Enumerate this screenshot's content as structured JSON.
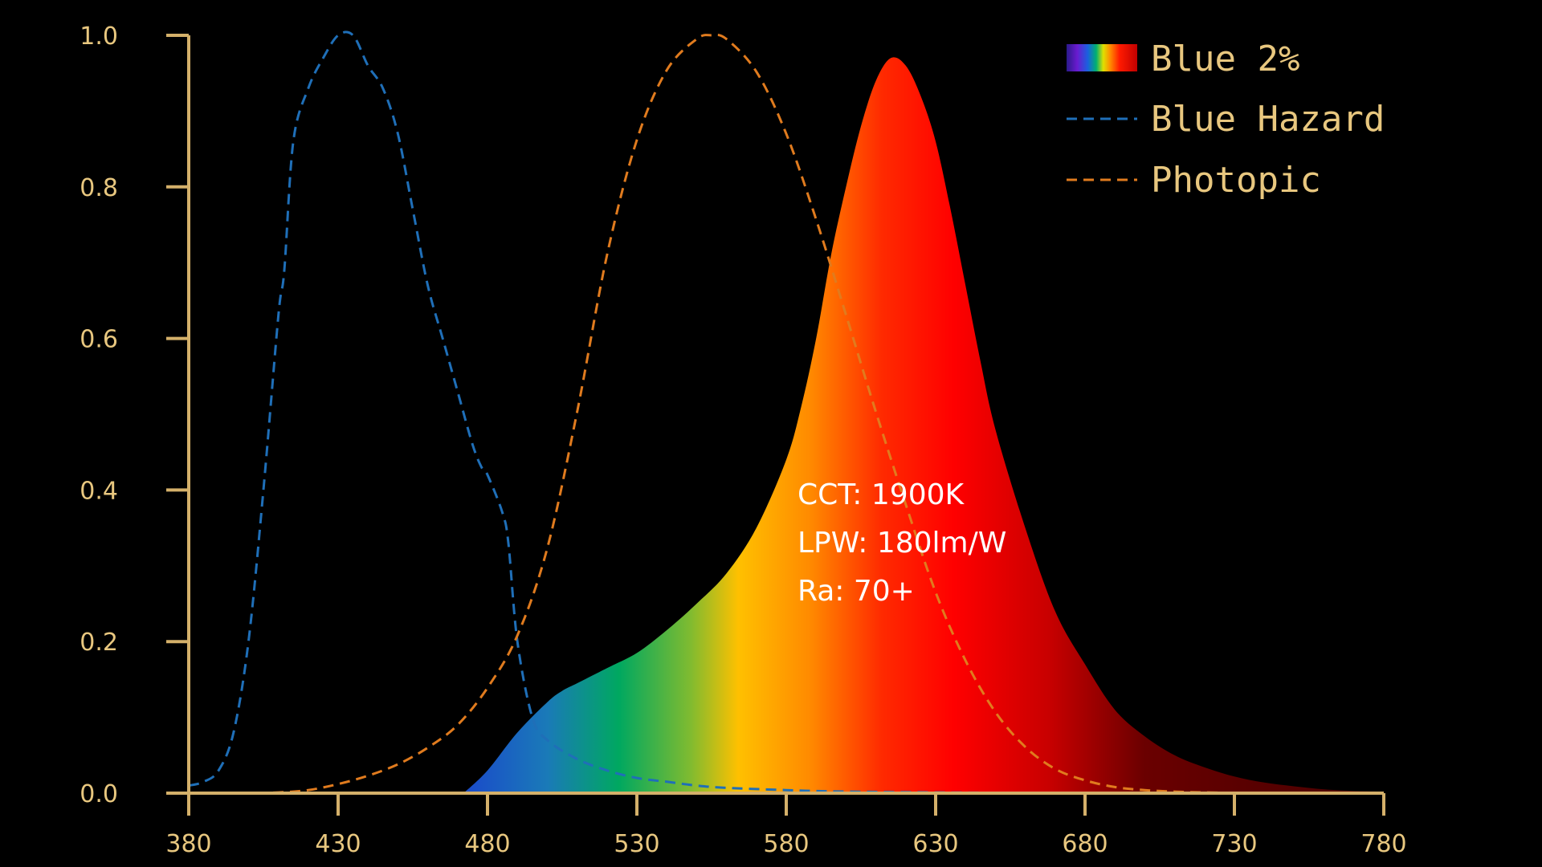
{
  "chart_data": {
    "type": "area",
    "xlim": [
      380,
      780
    ],
    "ylim": [
      0,
      1.0
    ],
    "x_ticks": [
      380,
      430,
      480,
      530,
      580,
      630,
      680,
      730,
      780
    ],
    "y_ticks": [
      "0.0",
      "0.2",
      "0.4",
      "0.6",
      "0.8",
      "1.0"
    ],
    "axis_color": "#d4b06a",
    "grid": false,
    "legend_position": "top-right",
    "series": [
      {
        "name": "Blue 2%",
        "style": "spectrum-fill",
        "x": [
          472,
          480,
          490,
          500,
          505,
          510,
          520,
          530,
          540,
          550,
          560,
          570,
          580,
          585,
          590,
          595,
          600,
          605,
          610,
          615,
          620,
          625,
          630,
          635,
          640,
          645,
          650,
          660,
          670,
          680,
          690,
          700,
          710,
          720,
          730,
          740,
          750,
          760,
          770,
          780
        ],
        "y": [
          0.0,
          0.03,
          0.08,
          0.12,
          0.135,
          0.145,
          0.165,
          0.185,
          0.215,
          0.25,
          0.29,
          0.35,
          0.44,
          0.51,
          0.6,
          0.71,
          0.8,
          0.88,
          0.94,
          0.97,
          0.96,
          0.92,
          0.86,
          0.77,
          0.67,
          0.57,
          0.48,
          0.35,
          0.24,
          0.17,
          0.11,
          0.075,
          0.05,
          0.034,
          0.022,
          0.014,
          0.009,
          0.005,
          0.003,
          0.002
        ]
      },
      {
        "name": "Blue Hazard",
        "style": "dashed",
        "color": "#1f6fb8",
        "x": [
          380,
          385,
          390,
          395,
          400,
          405,
          410,
          412,
          415,
          420,
          425,
          430,
          435,
          440,
          445,
          450,
          455,
          460,
          465,
          470,
          475,
          478,
          480,
          485,
          487,
          490,
          495,
          500,
          510,
          520,
          530,
          540,
          550,
          560,
          580,
          600,
          630,
          680,
          730,
          780
        ],
        "y": [
          0.01,
          0.015,
          0.03,
          0.08,
          0.2,
          0.4,
          0.63,
          0.69,
          0.86,
          0.93,
          0.97,
          1.0,
          1.0,
          0.96,
          0.93,
          0.87,
          0.77,
          0.67,
          0.6,
          0.53,
          0.46,
          0.43,
          0.42,
          0.37,
          0.33,
          0.2,
          0.1,
          0.07,
          0.045,
          0.03,
          0.02,
          0.015,
          0.01,
          0.007,
          0.004,
          0.002,
          0.001,
          0.0,
          0.0,
          0.0
        ]
      },
      {
        "name": "Photopic",
        "style": "dashed",
        "color": "#e07b1e",
        "x": [
          380,
          390,
          400,
          410,
          420,
          430,
          440,
          450,
          460,
          470,
          480,
          490,
          500,
          510,
          520,
          530,
          540,
          550,
          555,
          560,
          570,
          580,
          590,
          600,
          610,
          620,
          630,
          640,
          650,
          660,
          670,
          680,
          690,
          700,
          710,
          720,
          740,
          760,
          780
        ],
        "y": [
          0.0,
          0.0,
          0.0,
          0.001,
          0.004,
          0.012,
          0.023,
          0.038,
          0.06,
          0.09,
          0.139,
          0.208,
          0.323,
          0.503,
          0.71,
          0.862,
          0.954,
          0.995,
          1.0,
          0.995,
          0.952,
          0.87,
          0.757,
          0.631,
          0.503,
          0.381,
          0.265,
          0.175,
          0.107,
          0.061,
          0.032,
          0.017,
          0.008,
          0.004,
          0.002,
          0.001,
          0.0,
          0.0,
          0.0
        ]
      }
    ],
    "annotations": [
      "CCT: 1900K",
      "LPW: 180lm/W",
      "Ra: 70+"
    ]
  }
}
